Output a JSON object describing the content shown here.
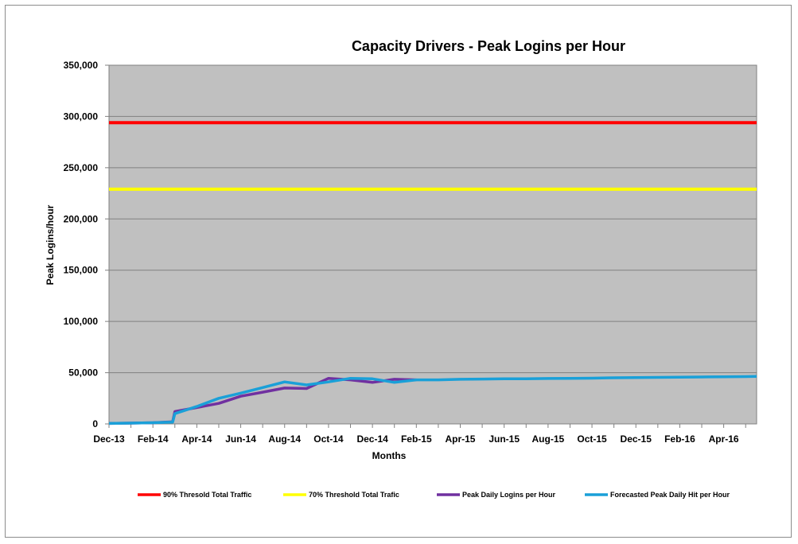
{
  "chart_data": {
    "type": "line",
    "title": "Capacity Drivers - Peak Logins per Hour",
    "xlabel": "Months",
    "ylabel": "Peak  Logins/hour",
    "ylim": [
      0,
      350000
    ],
    "yticks": [
      0,
      50000,
      100000,
      150000,
      200000,
      250000,
      300000,
      350000
    ],
    "ytick_labels": [
      "0",
      "50,000",
      "100,000",
      "150,000",
      "200,000",
      "250,000",
      "300,000",
      "350,000"
    ],
    "xlim": [
      0,
      29.5
    ],
    "xticks": [
      0,
      2,
      4,
      6,
      8,
      10,
      12,
      14,
      16,
      18,
      20,
      22,
      24,
      26,
      28
    ],
    "xtick_labels": [
      "Dec-13",
      "Feb-14",
      "Apr-14",
      "Jun-14",
      "Aug-14",
      "Oct-14",
      "Dec-14",
      "Feb-15",
      "Apr-15",
      "Jun-15",
      "Aug-15",
      "Oct-15",
      "Dec-15",
      "Feb-16",
      "Apr-16"
    ],
    "grid": true,
    "background": "#C0C0C0",
    "legend": "bottom",
    "series": [
      {
        "name": "90% Thresold Total Traffic",
        "color": "#FF0000",
        "x": [
          0,
          29.5
        ],
        "y": [
          294000,
          294000
        ]
      },
      {
        "name": "70% Threshold Total Trafic",
        "color": "#FFFF00",
        "x": [
          0,
          29.5
        ],
        "y": [
          229000,
          229000
        ]
      },
      {
        "name": "Peak Daily Logins per Hour",
        "color": "#7030A0",
        "x": [
          0,
          1,
          2,
          2.9,
          3.0,
          4,
          5,
          6,
          7,
          8,
          9,
          10,
          11,
          12,
          13,
          14
        ],
        "y": [
          500,
          800,
          1200,
          2000,
          12000,
          16000,
          20000,
          27000,
          31000,
          35000,
          34500,
          44500,
          43000,
          40500,
          43500,
          43000
        ]
      },
      {
        "name": "Forecasted Peak Daily Hit per Hour",
        "color": "#1AA0D8",
        "x": [
          0,
          1,
          2,
          2.9,
          3.0,
          4,
          5,
          6,
          7,
          8,
          9,
          10,
          11,
          12,
          13,
          14,
          15,
          16,
          17,
          18,
          19,
          20,
          21,
          22,
          23,
          24,
          25,
          26,
          27,
          28,
          29,
          29.5
        ],
        "y": [
          500,
          800,
          1200,
          1800,
          10000,
          17000,
          25000,
          30000,
          35500,
          41000,
          38000,
          41000,
          44500,
          44000,
          40500,
          43000,
          43000,
          43500,
          43800,
          44000,
          44000,
          44300,
          44500,
          44600,
          45000,
          45200,
          45400,
          45600,
          45800,
          46000,
          46200,
          46300
        ]
      }
    ]
  }
}
